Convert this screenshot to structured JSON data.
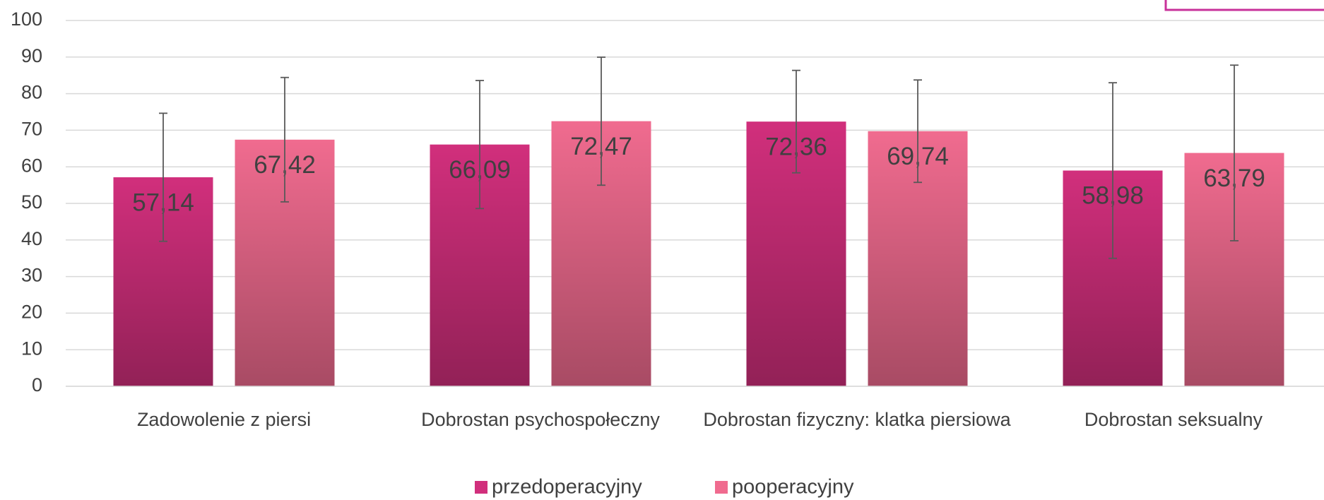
{
  "chart_data": {
    "type": "bar",
    "categories": [
      "Zadowolenie z piersi",
      "Dobrostan psychospołeczny",
      "Dobrostan fizyczny: klatka piersiowa",
      "Dobrostan seksualny"
    ],
    "series": [
      {
        "name": "przedoperacyjny",
        "color": "#d12f7c",
        "values": [
          57.14,
          66.09,
          72.36,
          58.98
        ],
        "value_labels": [
          "57,14",
          "66,09",
          "72,36",
          "58,98"
        ],
        "errors": [
          17.5,
          17.5,
          14,
          24
        ]
      },
      {
        "name": "pooperacyjny",
        "color": "#f06b8f",
        "values": [
          67.42,
          72.47,
          69.74,
          63.79
        ],
        "value_labels": [
          "67,42",
          "72,47",
          "69,74",
          "63,79"
        ],
        "errors": [
          17,
          17.5,
          14,
          24
        ]
      }
    ],
    "ylim": [
      0,
      100
    ],
    "yticks": [
      0,
      10,
      20,
      30,
      40,
      50,
      60,
      70,
      80,
      90,
      100
    ],
    "grid": true,
    "legend": "bottom"
  }
}
